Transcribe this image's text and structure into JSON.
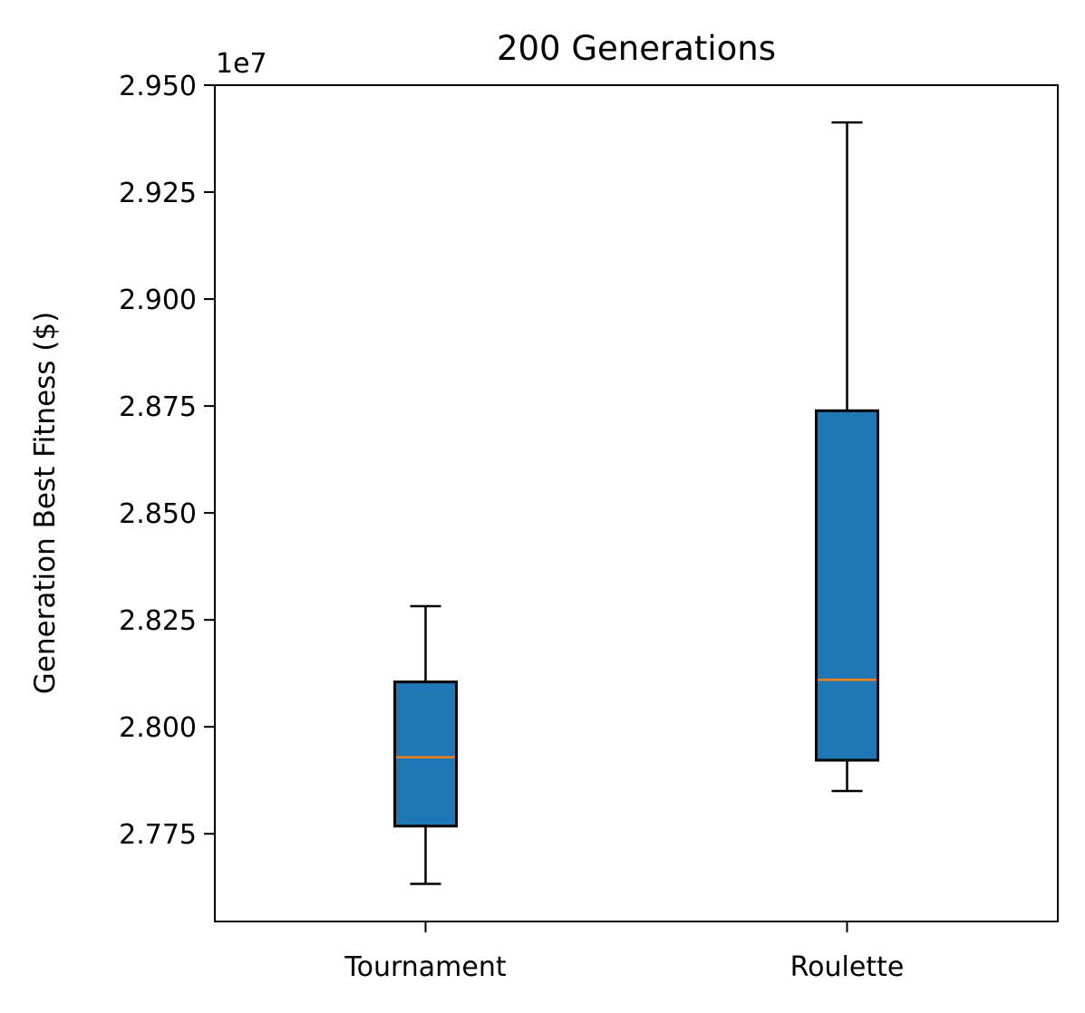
{
  "chart_data": {
    "type": "box",
    "title": "200 Generations",
    "xlabel": "",
    "ylabel": "Generation Best Fitness ($)",
    "offset_label": "1e7",
    "y_scale_factor": 10000000,
    "ylim": [
      2.7545,
      2.95
    ],
    "yticks": [
      2.775,
      2.8,
      2.825,
      2.85,
      2.875,
      2.9,
      2.925,
      2.95
    ],
    "ytick_labels": [
      "2.775",
      "2.800",
      "2.825",
      "2.850",
      "2.875",
      "2.900",
      "2.925",
      "2.950"
    ],
    "categories": [
      "Tournament",
      "Roulette"
    ],
    "boxes": [
      {
        "category": "Tournament",
        "whisker_low": 2.7633,
        "q1": 2.7768,
        "median": 2.7929,
        "q3": 2.8105,
        "whisker_high": 2.8282
      },
      {
        "category": "Roulette",
        "whisker_low": 2.785,
        "q1": 2.7922,
        "median": 2.811,
        "q3": 2.8739,
        "whisker_high": 2.9413
      }
    ],
    "colors": {
      "box_fill": "#1f77b4",
      "median": "#ff7f0e",
      "edge": "#000000"
    },
    "grid": false,
    "legend": "none"
  }
}
